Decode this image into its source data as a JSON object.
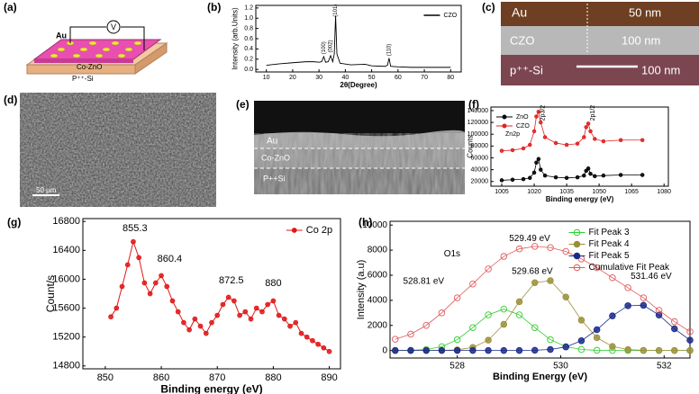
{
  "figure_labels": [
    "(a)",
    "(b)",
    "(c)",
    "(d)",
    "(e)",
    "(f)",
    "(g)",
    "(h)"
  ],
  "schematic_a": {
    "top_electrode": "Au",
    "meter": "V",
    "film": "Co-ZnO",
    "substrate": "P⁺⁺-Si"
  },
  "tem_c": {
    "layers": [
      {
        "name": "Au",
        "thickness": "50 nm"
      },
      {
        "name": "CZO",
        "thickness": "100 nm"
      },
      {
        "name": "p⁺⁺-Si"
      }
    ],
    "scale_bar": "100 nm"
  },
  "sem_d": {
    "scale_bar": "50 μm"
  },
  "sem_e": {
    "layers": [
      "Au",
      "Co-ZnO",
      "P++Si"
    ]
  },
  "chart_data": [
    {
      "type": "line",
      "x_label": "2θ(Degree)",
      "y_label": "Intensity (arb.Units)",
      "x": [
        10,
        15,
        20,
        25,
        28,
        30,
        31,
        31.8,
        32.5,
        33.5,
        34.4,
        35.2,
        35.8,
        36.3,
        36.8,
        38,
        42,
        47.5,
        50,
        55,
        56,
        56.6,
        57.2,
        60,
        65,
        70,
        75,
        80
      ],
      "series": [
        {
          "name": "CZO",
          "color": "#000000",
          "marker": "none",
          "values": [
            0.08,
            0.11,
            0.13,
            0.15,
            0.15,
            0.14,
            0.15,
            0.25,
            0.14,
            0.15,
            0.27,
            0.15,
            0.3,
            1.05,
            0.3,
            0.12,
            0.09,
            0.1,
            0.07,
            0.06,
            0.08,
            0.22,
            0.06,
            0.05,
            0.04,
            0.04,
            0.04,
            0.04
          ]
        }
      ],
      "xlim": [
        6,
        84
      ],
      "ylim": [
        -0.05,
        1.25
      ],
      "xticks": [
        10,
        20,
        30,
        40,
        50,
        60,
        70,
        80
      ],
      "yticks": [
        {
          "value": 0,
          "label": "0.0"
        },
        {
          "value": 0.2,
          "label": "0.2"
        },
        {
          "value": 0.4,
          "label": "0.4"
        },
        {
          "value": 0.6,
          "label": "0.6"
        },
        {
          "value": 0.8,
          "label": "0.8"
        },
        {
          "value": 1,
          "label": "1.0"
        },
        {
          "value": 1.2,
          "label": "1.2"
        }
      ],
      "legend": "upper right",
      "annotations": [
        {
          "text": "(100)",
          "x": 31.8,
          "y": 0.42
        },
        {
          "text": "(002)",
          "x": 34.4,
          "y": 0.45
        },
        {
          "text": "(101)",
          "x": 36.3,
          "y": 1.15
        },
        {
          "text": "(110)",
          "x": 56.6,
          "y": 0.38
        }
      ]
    },
    {
      "type": "line",
      "x_label": "Binding energy (eV)",
      "y_label": "Counts",
      "x": [
        1005,
        1010,
        1015,
        1018,
        1020,
        1021,
        1022,
        1023,
        1025,
        1030,
        1035,
        1040,
        1043,
        1044,
        1045,
        1046,
        1048,
        1052,
        1060,
        1070
      ],
      "series": [
        {
          "name": "ZnO",
          "color": "#000000",
          "marker": "filled",
          "values": [
            22000,
            23000,
            24000,
            26000,
            35000,
            52000,
            58000,
            40000,
            30000,
            27000,
            26000,
            27000,
            30000,
            38000,
            42000,
            33000,
            29000,
            30000,
            31000,
            31000
          ]
        },
        {
          "name": "CZO",
          "color": "#e02020",
          "marker": "filled",
          "values": [
            72000,
            73000,
            76000,
            82000,
            105000,
            130000,
            138000,
            120000,
            95000,
            85000,
            82000,
            84000,
            95000,
            112000,
            118000,
            105000,
            92000,
            88000,
            90000,
            90000
          ]
        }
      ],
      "xlim": [
        1000,
        1082
      ],
      "ylim": [
        12000,
        146000
      ],
      "xticks": [
        1005,
        1020,
        1035,
        1050,
        1065,
        1080
      ],
      "yticks": [
        20000,
        40000,
        60000,
        80000,
        100000,
        120000,
        140000
      ],
      "legend": "upper left",
      "annotations": [
        {
          "text": "Zn2p",
          "x": 1010,
          "y": 100000
        },
        {
          "text": "2p3/2",
          "x": 1024,
          "y": 136000
        },
        {
          "text": "2p1/2",
          "x": 1047,
          "y": 136000
        }
      ]
    },
    {
      "type": "line",
      "x_label": "Binding energy (eV)",
      "y_label": "Count/s",
      "x": [
        851,
        852,
        853,
        854,
        855,
        856,
        857,
        858,
        859,
        860,
        861,
        862,
        863,
        864,
        865,
        866,
        867,
        868,
        869,
        870,
        871,
        872,
        873,
        874,
        875,
        876,
        877,
        878,
        879,
        880,
        881,
        882,
        883,
        884,
        885,
        886,
        887,
        888,
        889,
        890
      ],
      "series": [
        {
          "name": "Co 2p",
          "color": "#e01818",
          "marker": "filled",
          "values": [
            15480,
            15600,
            15900,
            16200,
            16520,
            16300,
            15950,
            15800,
            15950,
            16050,
            15900,
            15700,
            15550,
            15400,
            15300,
            15450,
            15350,
            15250,
            15400,
            15500,
            15650,
            15750,
            15700,
            15500,
            15550,
            15450,
            15600,
            15550,
            15650,
            15700,
            15500,
            15450,
            15350,
            15400,
            15250,
            15200,
            15150,
            15100,
            15050,
            15000
          ]
        }
      ],
      "xlim": [
        846,
        892
      ],
      "ylim": [
        14760,
        16840
      ],
      "xticks": [
        850,
        860,
        870,
        880,
        890
      ],
      "yticks": [
        14800,
        15200,
        15600,
        16000,
        16400,
        16800
      ],
      "legend": "upper right",
      "annotations": [
        {
          "text": "855.3",
          "x": 855.3,
          "y": 16700
        },
        {
          "text": "860.4",
          "x": 861.5,
          "y": 16280
        },
        {
          "text": "872.5",
          "x": 872.5,
          "y": 15980
        },
        {
          "text": "880",
          "x": 880,
          "y": 15940
        }
      ]
    },
    {
      "type": "line",
      "x_label": "Binding Energy (eV)",
      "y_label": "Intensity (a.u)",
      "x": [
        526.8,
        527.1,
        527.4,
        527.7,
        528.0,
        528.3,
        528.6,
        528.9,
        529.2,
        529.5,
        529.8,
        530.1,
        530.4,
        530.7,
        531.0,
        531.3,
        531.6,
        531.9,
        532.2,
        532.5
      ],
      "series": [
        {
          "name": "Fit Peak 3",
          "color": "#33cc33",
          "marker": "open",
          "values": [
            2,
            15,
            80,
            306,
            864,
            1821,
            2844,
            3300,
            2844,
            1821,
            864,
            306,
            80,
            15,
            2,
            0,
            0,
            0,
            0,
            0
          ]
        },
        {
          "name": "Fit Peak 4",
          "color": "#9c8f3a",
          "marker": "filled",
          "values": [
            0,
            0,
            1,
            9,
            54,
            245,
            827,
            2086,
            3893,
            5404,
            5566,
            4258,
            2417,
            1020,
            319,
            74,
            13,
            2,
            0,
            0
          ]
        },
        {
          "name": "Fit Peak 5",
          "color": "#1a2a8c",
          "marker": "filled",
          "values": [
            0,
            0,
            0,
            0,
            0,
            0,
            0,
            0,
            3,
            18,
            80,
            283,
            777,
            1659,
            2758,
            3571,
            3600,
            2827,
            1729,
            826
          ]
        },
        {
          "name": "Cumulative Fit Peak",
          "color": "#e05a5a",
          "marker": "open",
          "values": [
            900,
            1300,
            2000,
            3000,
            4200,
            5300,
            6500,
            7500,
            8100,
            8300,
            8200,
            7900,
            7300,
            6600,
            5800,
            5000,
            4200,
            3200,
            2300,
            1500
          ]
        }
      ],
      "xlim": [
        526.7,
        532.5
      ],
      "ylim": [
        -600,
        10300
      ],
      "xticks": [
        528,
        530,
        532
      ],
      "yticks": [
        0,
        2000,
        4000,
        6000,
        8000,
        10000
      ],
      "legend": "upper right",
      "annotations": [
        {
          "text": "O1s",
          "x": 527.9,
          "y": 7700
        },
        {
          "text": "529.49 eV",
          "x": 529.4,
          "y": 8900
        },
        {
          "text": "529.68 eV",
          "x": 529.45,
          "y": 6300
        },
        {
          "text": "528.81 eV",
          "x": 527.35,
          "y": 5500
        },
        {
          "text": "531.46 eV",
          "x": 531.75,
          "y": 5900
        }
      ]
    }
  ]
}
